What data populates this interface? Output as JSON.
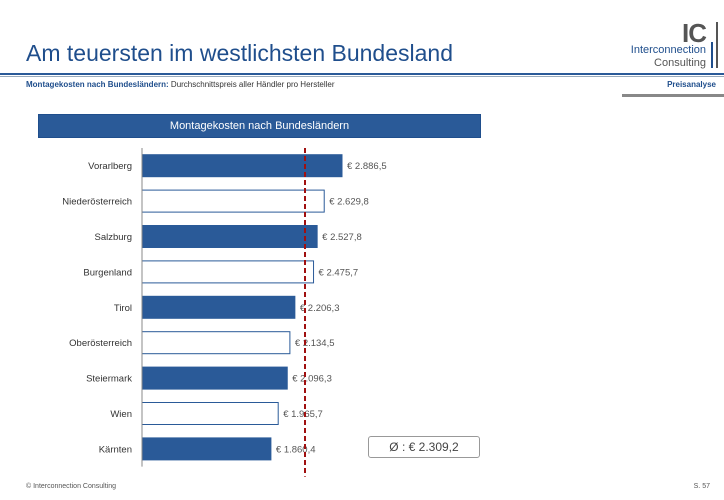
{
  "header": {
    "title": "Am teuersten im westlichsten Bundesland",
    "subtitle_bold": "Montagekosten nach Bundesländern:",
    "subtitle_rest": " Durchschnittspreis aller Händler pro Hersteller",
    "section": "Preisanalyse"
  },
  "logo": {
    "mark": "IC",
    "line1": "Interconnection",
    "line2": "Consulting"
  },
  "footer": {
    "copyright": "© Interconnection Consulting",
    "page": "S. 57"
  },
  "colors": {
    "accent": "#2a5a98",
    "avg_line": "#a01010"
  },
  "chart_data": {
    "type": "bar",
    "orientation": "horizontal",
    "title": "Montagekosten nach Bundesländern",
    "categories": [
      "Vorarlberg",
      "Niederösterreich",
      "Salzburg",
      "Burgenland",
      "Tirol",
      "Oberösterreich",
      "Steiermark",
      "Wien",
      "Kärnten"
    ],
    "values": [
      2886.5,
      2629.8,
      2527.8,
      2475.7,
      2206.3,
      2134.5,
      2096.3,
      1965.7,
      1860.4
    ],
    "labels": [
      "€ 2.886,5",
      "€ 2.629,8",
      "€ 2.527,8",
      "€ 2.475,7",
      "€ 2.206,3",
      "€ 2.134,5",
      "€ 2.096,3",
      "€ 1.965,7",
      "€ 1.860,4"
    ],
    "filled": [
      true,
      false,
      true,
      false,
      true,
      false,
      true,
      false,
      true
    ],
    "average": 2309.2,
    "average_label": "Ø : € 2.309,2",
    "xlim": [
      0,
      2900
    ]
  }
}
